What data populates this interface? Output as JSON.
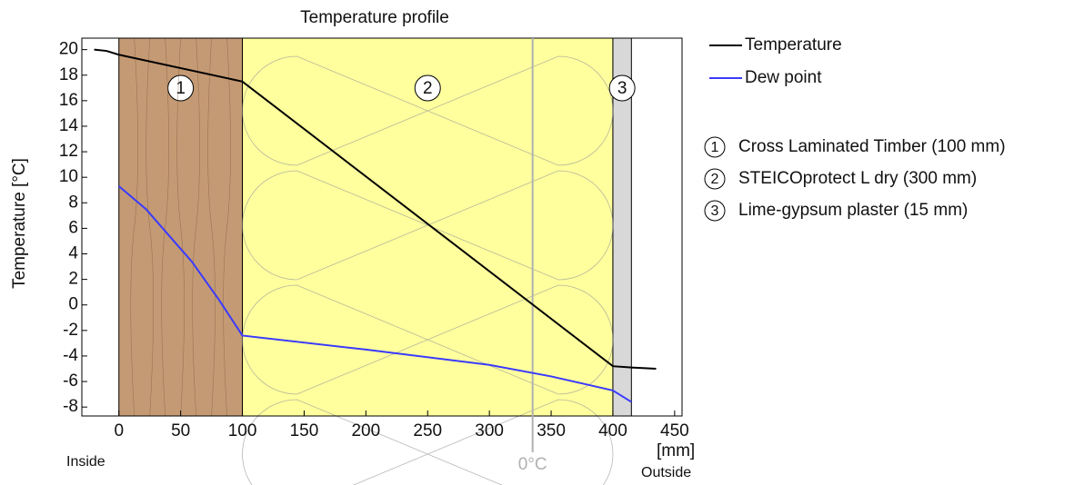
{
  "chart_data": {
    "type": "line",
    "title": "Temperature profile",
    "y_label": "Temperature  [°C]",
    "x_unit": "[mm]",
    "inside_label": "Inside",
    "outside_label": "Outside",
    "xlim": [
      -30,
      456
    ],
    "ylim": [
      -8.7,
      20.9
    ],
    "xticks": [
      0,
      50,
      100,
      150,
      200,
      250,
      300,
      350,
      400,
      450
    ],
    "yticks": [
      -8,
      -6,
      -4,
      -2,
      0,
      2,
      4,
      6,
      8,
      10,
      12,
      14,
      16,
      18,
      20
    ],
    "layers": [
      {
        "number": "1",
        "name": "Cross Laminated Timber (100 mm)",
        "start": 0,
        "end": 100,
        "color": "#c49a74"
      },
      {
        "number": "2",
        "name": "STEICOprotect L dry (300 mm)",
        "start": 100,
        "end": 400,
        "color": "#ffff9e"
      },
      {
        "number": "3",
        "name": "Lime-gypsum plaster (15 mm)",
        "start": 400,
        "end": 415,
        "color": "#d8d8d8"
      }
    ],
    "zero_line": {
      "x": 335,
      "label": "0°C",
      "color": "#b0b0b0"
    },
    "series": [
      {
        "name": "Temperature",
        "color": "#000000",
        "x": [
          -20,
          -10,
          0,
          100,
          400,
          415,
          435
        ],
        "values": [
          20.0,
          19.9,
          19.6,
          17.5,
          -4.8,
          -4.9,
          -5.0
        ]
      },
      {
        "name": "Dew point",
        "color": "#3a3aff",
        "x": [
          0,
          22,
          40,
          59,
          81,
          100,
          200,
          300,
          350,
          400,
          415
        ],
        "values": [
          9.3,
          7.5,
          5.5,
          3.4,
          0.4,
          -2.4,
          -3.5,
          -4.7,
          -5.6,
          -6.7,
          -7.6
        ]
      }
    ]
  }
}
